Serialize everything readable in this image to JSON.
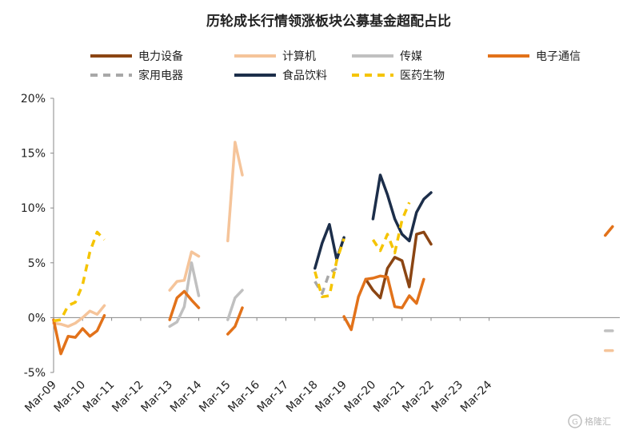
{
  "chart_data": {
    "type": "line",
    "title": "历轮成长行情领涨板块公募基金超配占比",
    "xlabel": "",
    "ylabel": "",
    "ylim": [
      -5,
      20
    ],
    "yticks": [
      "-5%",
      "0%",
      "5%",
      "10%",
      "15%",
      "20%"
    ],
    "x_tick_labels": [
      "Mar-09",
      "Mar-10",
      "Mar-11",
      "Mar-12",
      "Mar-13",
      "Mar-14",
      "Mar-15",
      "Mar-16",
      "Mar-17",
      "Mar-18",
      "Mar-19",
      "Mar-20",
      "Mar-21",
      "Mar-22",
      "Mar-23",
      "Mar-24"
    ],
    "x_unit": "quarters since Mar-09",
    "grid": false,
    "legend_position": "top",
    "series": [
      {
        "name": "电力设备",
        "color": "#8B4513",
        "dash": false,
        "points": [
          [
            43,
            3.5
          ],
          [
            44,
            2.5
          ],
          [
            45,
            1.8
          ],
          [
            46,
            4.5
          ],
          [
            47,
            5.5
          ],
          [
            48,
            5.2
          ],
          [
            49,
            2.8
          ],
          [
            50,
            7.6
          ],
          [
            51,
            7.8
          ],
          [
            52,
            6.7
          ]
        ]
      },
      {
        "name": "计算机",
        "color": "#F5C49A",
        "dash": false,
        "points": [
          [
            0,
            -0.5
          ],
          [
            1,
            -0.6
          ],
          [
            2,
            -0.8
          ],
          [
            3,
            -0.5
          ],
          [
            4,
            0
          ],
          [
            5,
            0.6
          ],
          [
            6,
            0.3
          ],
          [
            7,
            1.1
          ],
          null,
          [
            16,
            2.5
          ],
          [
            17,
            3.3
          ],
          [
            18,
            3.4
          ],
          [
            19,
            6.0
          ],
          [
            20,
            5.6
          ],
          null,
          [
            24,
            7.0
          ],
          [
            25,
            16.0
          ],
          [
            26,
            13.0
          ],
          null,
          [
            76,
            -3.0
          ],
          [
            77,
            -3.0
          ]
        ]
      },
      {
        "name": "传媒",
        "color": "#C0C0C0",
        "dash": false,
        "points": [
          [
            16,
            -0.8
          ],
          [
            17,
            -0.4
          ],
          [
            18,
            1.0
          ],
          [
            19,
            5.0
          ],
          [
            20,
            2.0
          ],
          null,
          [
            24,
            -0.2
          ],
          [
            25,
            1.8
          ],
          [
            26,
            2.5
          ],
          null,
          [
            76,
            -1.2
          ],
          [
            77,
            -1.2
          ]
        ]
      },
      {
        "name": "电子通信",
        "color": "#E2721A",
        "dash": false,
        "points": [
          [
            0,
            -0.2
          ],
          [
            1,
            -3.3
          ],
          [
            2,
            -1.7
          ],
          [
            3,
            -1.8
          ],
          [
            4,
            -1.0
          ],
          [
            5,
            -1.7
          ],
          [
            6,
            -1.2
          ],
          [
            7,
            0.2
          ],
          null,
          [
            16,
            -0.2
          ],
          [
            17,
            1.8
          ],
          [
            18,
            2.4
          ],
          [
            19,
            1.6
          ],
          [
            20,
            0.9
          ],
          null,
          [
            24,
            -1.5
          ],
          [
            25,
            -0.8
          ],
          [
            26,
            0.9
          ],
          null,
          [
            40,
            0.1
          ],
          [
            41,
            -1.1
          ],
          [
            42,
            1.9
          ],
          [
            43,
            3.5
          ],
          [
            44,
            3.6
          ],
          [
            45,
            3.8
          ],
          [
            46,
            3.7
          ],
          [
            47,
            1.0
          ],
          [
            48,
            0.9
          ],
          [
            49,
            2.0
          ],
          [
            50,
            1.3
          ],
          [
            51,
            3.5
          ],
          null,
          [
            76,
            7.5
          ],
          [
            77,
            8.3
          ]
        ]
      },
      {
        "name": "家用电器",
        "color": "#A8A8A8",
        "dash": true,
        "points": [
          [
            36,
            3.3
          ],
          [
            37,
            2.2
          ],
          [
            38,
            4.1
          ],
          [
            39,
            4.5
          ]
        ]
      },
      {
        "name": "食品饮料",
        "color": "#1C2E4A",
        "dash": false,
        "points": [
          [
            36,
            4.5
          ],
          [
            37,
            6.8
          ],
          [
            38,
            8.5
          ],
          [
            39,
            5.3
          ],
          [
            40,
            7.3
          ],
          null,
          [
            44,
            9.0
          ],
          [
            45,
            13.0
          ],
          [
            46,
            11.2
          ],
          [
            47,
            9.0
          ],
          [
            48,
            7.6
          ],
          [
            49,
            7.0
          ],
          [
            50,
            9.6
          ],
          [
            51,
            10.8
          ],
          [
            52,
            11.4
          ]
        ]
      },
      {
        "name": "医药生物",
        "color": "#F5C400",
        "dash": true,
        "points": [
          [
            0,
            -0.3
          ],
          [
            1,
            -0.2
          ],
          [
            2,
            1.1
          ],
          [
            3,
            1.4
          ],
          [
            4,
            3.0
          ],
          [
            5,
            6.0
          ],
          [
            6,
            7.8
          ],
          [
            7,
            7.1
          ],
          null,
          [
            36,
            4.2
          ],
          [
            37,
            1.9
          ],
          [
            38,
            2.0
          ],
          [
            39,
            5.2
          ],
          [
            40,
            7.2
          ],
          null,
          [
            44,
            7.1
          ],
          [
            45,
            6.1
          ],
          [
            46,
            7.6
          ],
          [
            47,
            5.9
          ],
          [
            48,
            8.9
          ],
          [
            49,
            10.5
          ]
        ]
      }
    ]
  },
  "watermark": {
    "text": "格隆汇"
  }
}
